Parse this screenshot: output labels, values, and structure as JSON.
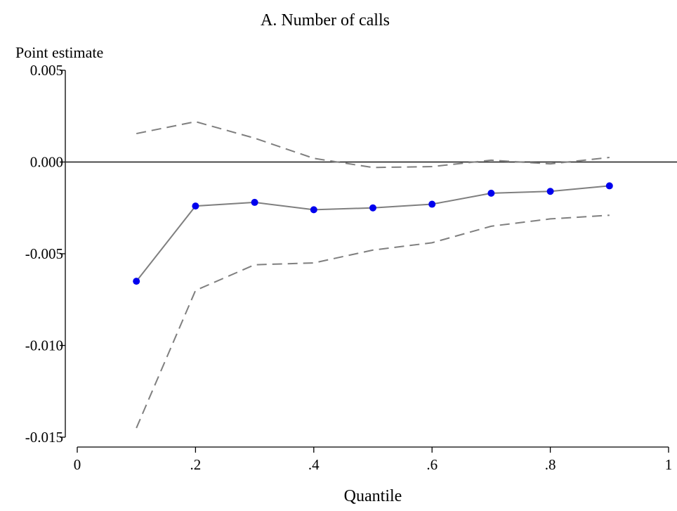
{
  "chart_data": {
    "type": "line",
    "title": "A. Number of calls",
    "y_label": "Point estimate",
    "x_label": "Quantile",
    "x": [
      0.1,
      0.2,
      0.3,
      0.4,
      0.5,
      0.6,
      0.7,
      0.8,
      0.9
    ],
    "series": [
      {
        "color": "#7f7f7f",
        "marker_color": "#0000ee",
        "style": "solid",
        "markers": true,
        "values": [
          -0.0065,
          -0.0024,
          -0.0022,
          -0.0026,
          -0.0025,
          -0.0023,
          -0.0017,
          -0.0016,
          -0.0013
        ]
      },
      {
        "color": "#7f7f7f",
        "style": "dashed",
        "markers": false,
        "values": [
          0.00155,
          0.0022,
          0.0013,
          0.0002,
          -0.0003,
          -0.00025,
          0.0001,
          -0.0001,
          0.00025
        ]
      },
      {
        "color": "#7f7f7f",
        "style": "dashed",
        "markers": false,
        "values": [
          -0.0145,
          -0.007,
          -0.0056,
          -0.0055,
          -0.0048,
          -0.0044,
          -0.0035,
          -0.0031,
          -0.0029
        ]
      }
    ],
    "xlim": [
      0,
      1
    ],
    "xticks": [
      0,
      {
        "value": 0.2,
        "label": ".2"
      },
      {
        "value": 0.4,
        "label": ".4"
      },
      {
        "value": 0.6,
        "label": ".6"
      },
      {
        "value": 0.8,
        "label": ".8"
      },
      1
    ],
    "ylim": [
      -0.015,
      0.005
    ],
    "yticks": [
      0.005,
      {
        "value": 0,
        "label": "0.000"
      },
      -0.005,
      {
        "value": -0.01,
        "label": "-0.010"
      },
      -0.015
    ],
    "reference_line": true
  }
}
